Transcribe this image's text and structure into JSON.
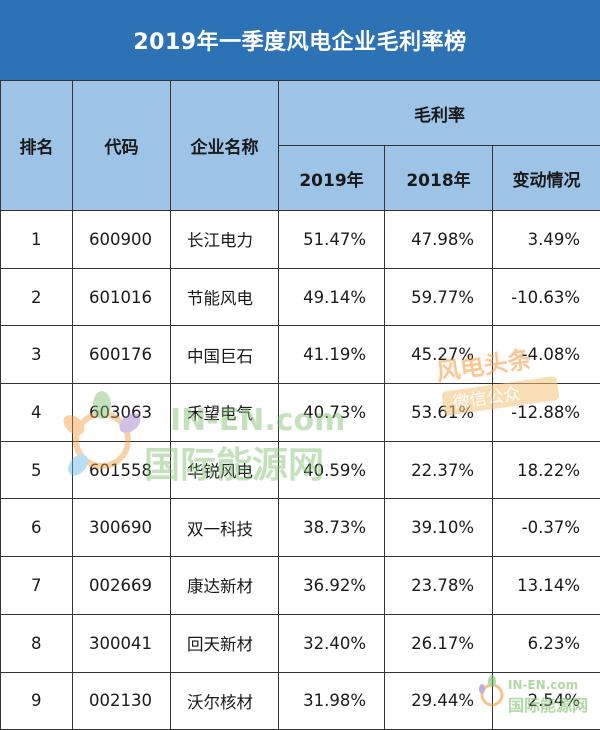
{
  "title": "2019年一季度风电企业毛利率榜",
  "headers": {
    "rank": "排名",
    "code": "代码",
    "name": "企业名称",
    "margin_group": "毛利率",
    "y2019": "2019年",
    "y2018": "2018年",
    "change": "变动情况"
  },
  "rows": [
    {
      "rank": "1",
      "code": "600900",
      "name": "长江电力",
      "y2019": "51.47%",
      "y2018": "47.98%",
      "change": "3.49%"
    },
    {
      "rank": "2",
      "code": "601016",
      "name": "节能风电",
      "y2019": "49.14%",
      "y2018": "59.77%",
      "change": "-10.63%"
    },
    {
      "rank": "3",
      "code": "600176",
      "name": "中国巨石",
      "y2019": "41.19%",
      "y2018": "45.27%",
      "change": "-4.08%"
    },
    {
      "rank": "4",
      "code": "603063",
      "name": "禾望电气",
      "y2019": "40.73%",
      "y2018": "53.61%",
      "change": "-12.88%"
    },
    {
      "rank": "5",
      "code": "601558",
      "name": "华锐风电",
      "y2019": "40.59%",
      "y2018": "22.37%",
      "change": "18.22%"
    },
    {
      "rank": "6",
      "code": "300690",
      "name": "双一科技",
      "y2019": "38.73%",
      "y2018": "39.10%",
      "change": "-0.37%"
    },
    {
      "rank": "7",
      "code": "002669",
      "name": "康达新材",
      "y2019": "36.92%",
      "y2018": "23.78%",
      "change": "13.14%"
    },
    {
      "rank": "8",
      "code": "300041",
      "name": "回天新材",
      "y2019": "32.40%",
      "y2018": "26.17%",
      "change": "6.23%"
    },
    {
      "rank": "9",
      "code": "002130",
      "name": "沃尔核材",
      "y2019": "31.98%",
      "y2018": "29.44%",
      "change": "2.54%"
    }
  ],
  "watermarks": {
    "left_latin": "IN-EN.com",
    "left_cn": "国际能源网",
    "right_line1": "风电头条",
    "right_line2": "微信公众",
    "corner_latin": "IN-EN.com",
    "corner_cn": "国际能源网"
  },
  "colors": {
    "title_bg": "#2e72b6",
    "header_bg": "#9dc3e6",
    "watermark_green": "#7cc06a",
    "watermark_orange": "#f39a3c"
  }
}
